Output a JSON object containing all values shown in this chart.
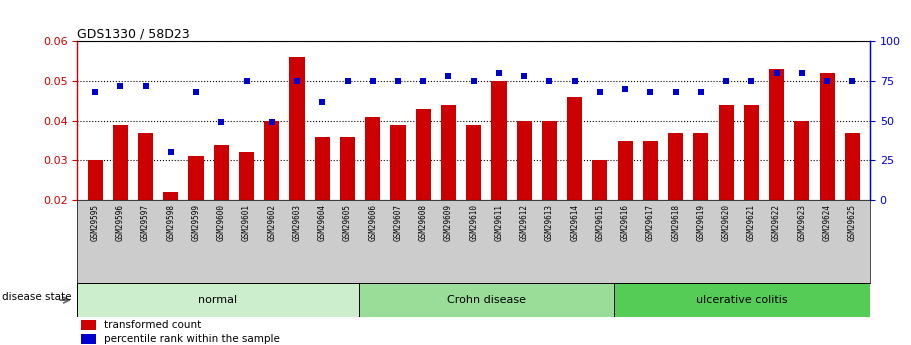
{
  "title": "GDS1330 / 58D23",
  "samples": [
    "GSM29595",
    "GSM29596",
    "GSM29597",
    "GSM29598",
    "GSM29599",
    "GSM29600",
    "GSM29601",
    "GSM29602",
    "GSM29603",
    "GSM29604",
    "GSM29605",
    "GSM29606",
    "GSM29607",
    "GSM29608",
    "GSM29609",
    "GSM29610",
    "GSM29611",
    "GSM29612",
    "GSM29613",
    "GSM29614",
    "GSM29615",
    "GSM29616",
    "GSM29617",
    "GSM29618",
    "GSM29619",
    "GSM29620",
    "GSM29621",
    "GSM29622",
    "GSM29623",
    "GSM29624",
    "GSM29625"
  ],
  "bar_values": [
    0.03,
    0.039,
    0.037,
    0.022,
    0.031,
    0.034,
    0.032,
    0.04,
    0.056,
    0.036,
    0.036,
    0.041,
    0.039,
    0.043,
    0.044,
    0.039,
    0.05,
    0.04,
    0.04,
    0.046,
    0.03,
    0.035,
    0.035,
    0.037,
    0.037,
    0.044,
    0.044,
    0.053,
    0.04,
    0.052,
    0.037
  ],
  "dot_values": [
    68,
    72,
    72,
    30,
    68,
    49,
    75,
    49,
    75,
    62,
    75,
    75,
    75,
    75,
    78,
    75,
    80,
    78,
    75,
    75,
    68,
    70,
    68,
    68,
    68,
    75,
    75,
    80,
    80,
    75,
    75
  ],
  "groups": [
    {
      "label": "normal",
      "start": 0,
      "end": 10,
      "color": "#cceecc"
    },
    {
      "label": "Crohn disease",
      "start": 11,
      "end": 20,
      "color": "#99dd99"
    },
    {
      "label": "ulcerative colitis",
      "start": 21,
      "end": 30,
      "color": "#55cc55"
    }
  ],
  "bar_color": "#cc0000",
  "dot_color": "#0000cc",
  "ylim_left": [
    0.02,
    0.06
  ],
  "ylim_right": [
    0,
    100
  ],
  "yticks_left": [
    0.02,
    0.03,
    0.04,
    0.05,
    0.06
  ],
  "yticks_right": [
    0,
    25,
    50,
    75,
    100
  ],
  "legend_bar_label": "transformed count",
  "legend_dot_label": "percentile rank within the sample",
  "disease_state_label": "disease state",
  "xlabel_bg_color": "#cccccc",
  "plot_bg_color": "#ffffff"
}
